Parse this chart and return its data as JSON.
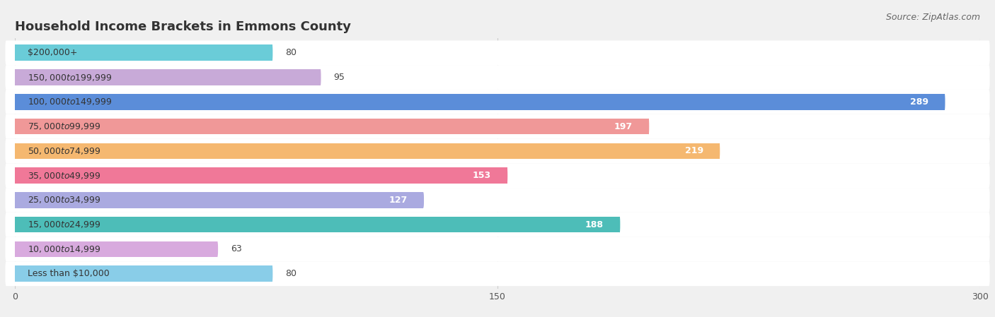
{
  "title": "Household Income Brackets in Emmons County",
  "source": "Source: ZipAtlas.com",
  "categories": [
    "Less than $10,000",
    "$10,000 to $14,999",
    "$15,000 to $24,999",
    "$25,000 to $34,999",
    "$35,000 to $49,999",
    "$50,000 to $74,999",
    "$75,000 to $99,999",
    "$100,000 to $149,999",
    "$150,000 to $199,999",
    "$200,000+"
  ],
  "values": [
    80,
    63,
    188,
    127,
    153,
    219,
    197,
    289,
    95,
    80
  ],
  "bar_colors": [
    "#89cde8",
    "#d8aade",
    "#4dbdb8",
    "#aaaae0",
    "#f07898",
    "#f5b870",
    "#f09898",
    "#5b8dd9",
    "#c8aad8",
    "#6accd8"
  ],
  "xlim": [
    0,
    300
  ],
  "xticks": [
    0,
    150,
    300
  ],
  "bg_color": "#f0f0f0",
  "row_bg_color": "#ffffff",
  "grid_color": "#cccccc",
  "title_color": "#333333",
  "title_fontsize": 13,
  "label_fontsize": 9,
  "value_fontsize": 9,
  "tick_fontsize": 9,
  "source_fontsize": 9,
  "bar_height": 0.65,
  "value_threshold": 100
}
